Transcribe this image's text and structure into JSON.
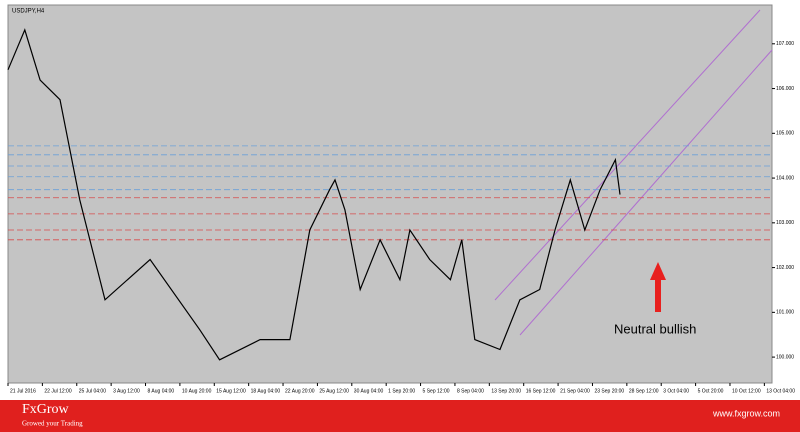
{
  "chart_data": {
    "type": "line",
    "title": "USDJPY,H4",
    "x": [
      0,
      2.2,
      4.2,
      6.8,
      9.4,
      12.7,
      18.6,
      25.1,
      27.7,
      33,
      36.9,
      39.5,
      42.1,
      42.8,
      44.1,
      46.1,
      48.7,
      51.3,
      52.6,
      55.2,
      57.9,
      59.4,
      61.1,
      64.4,
      67,
      69.6,
      71.6,
      73.6,
      75.5,
      77.5,
      79.5,
      80.1
    ],
    "series": [
      {
        "name": "USDJPY",
        "color": "#000000",
        "values": [
          106.42,
          107.31,
          106.19,
          105.75,
          103.51,
          101.28,
          102.18,
          100.61,
          99.94,
          100.39,
          100.39,
          102.84,
          103.74,
          103.96,
          103.29,
          101.51,
          102.62,
          101.73,
          102.84,
          102.18,
          101.73,
          102.62,
          100.39,
          100.17,
          101.28,
          101.51,
          102.84,
          103.96,
          102.84,
          103.74,
          104.41,
          103.63
        ]
      }
    ],
    "levels": [
      {
        "value": 104.72,
        "color": "#6a9fd8"
      },
      {
        "value": 104.52,
        "color": "#6a9fd8"
      },
      {
        "value": 104.27,
        "color": "#6a9fd8"
      },
      {
        "value": 104.03,
        "color": "#6a9fd8"
      },
      {
        "value": 103.74,
        "color": "#6a9fd8"
      },
      {
        "value": 103.56,
        "color": "#d84a4a"
      },
      {
        "value": 103.2,
        "color": "#d84a4a"
      },
      {
        "value": 102.84,
        "color": "#d84a4a"
      },
      {
        "value": 102.62,
        "color": "#d84a4a"
      }
    ],
    "xlim": [
      0,
      100
    ],
    "xticks": [
      {
        "value": 0,
        "label": "21 Jul 2016"
      },
      {
        "value": 4.5,
        "label": "22 Jul 12:00"
      },
      {
        "value": 9,
        "label": "25 Jul 04:00"
      },
      {
        "value": 13.5,
        "label": "3 Aug 12:00"
      },
      {
        "value": 18,
        "label": "8 Aug 04:00"
      },
      {
        "value": 22.5,
        "label": "10 Aug 20:00"
      },
      {
        "value": 27,
        "label": "15 Aug 12:00"
      },
      {
        "value": 31.5,
        "label": "18 Aug 04:00"
      },
      {
        "value": 36,
        "label": "22 Aug 20:00"
      },
      {
        "value": 40.5,
        "label": "25 Aug 12:00"
      },
      {
        "value": 45,
        "label": "30 Aug 04:00"
      },
      {
        "value": 49.5,
        "label": "1 Sep 20:00"
      },
      {
        "value": 54,
        "label": "5 Sep 12:00"
      },
      {
        "value": 58.5,
        "label": "8 Sep 04:00"
      },
      {
        "value": 63,
        "label": "13 Sep 20:00"
      },
      {
        "value": 67.5,
        "label": "16 Sep 12:00"
      },
      {
        "value": 72,
        "label": "21 Sep 04:00"
      },
      {
        "value": 76.5,
        "label": "23 Sep 20:00"
      },
      {
        "value": 81,
        "label": "28 Sep 12:00"
      },
      {
        "value": 85.5,
        "label": "3 Oct 04:00"
      },
      {
        "value": 90,
        "label": "5 Oct 20:00"
      },
      {
        "value": 94.5,
        "label": "10 Oct 12:00"
      },
      {
        "value": 99,
        "label": "13 Oct 04:00"
      }
    ],
    "ylim": [
      99.6,
      107.8
    ],
    "yticks": [
      {
        "value": 100,
        "label": "100.000"
      },
      {
        "value": 101,
        "label": "101.000"
      },
      {
        "value": 102,
        "label": "102.000"
      },
      {
        "value": 103,
        "label": "103.000"
      },
      {
        "value": 104,
        "label": "104.000"
      },
      {
        "value": 105,
        "label": "105.000"
      },
      {
        "value": 106,
        "label": "106.000"
      },
      {
        "value": 107,
        "label": "107.000"
      }
    ],
    "annotation": "Neutral bullish"
  },
  "footer": {
    "brand": "FxGrow",
    "tagline": "Growed your Trading",
    "url": "www.fxgrow.com"
  }
}
